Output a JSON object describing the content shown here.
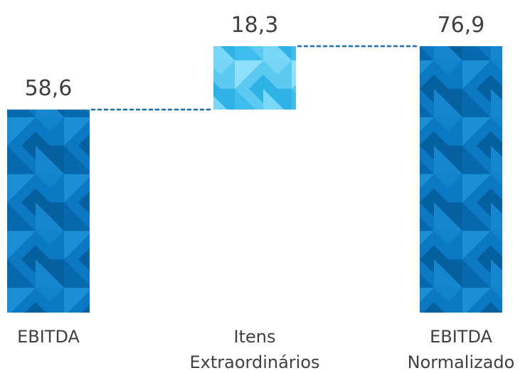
{
  "chart_data": {
    "type": "bar",
    "subtype": "waterfall",
    "categories": [
      [
        "EBITDA"
      ],
      [
        "Itens",
        "Extraordinários"
      ],
      [
        "EBITDA",
        "Normalizado"
      ]
    ],
    "values": [
      58.6,
      18.3,
      76.9
    ],
    "value_labels": [
      "58,6",
      "18,3",
      "76,9"
    ],
    "bar_roles": [
      "total",
      "increase",
      "total"
    ],
    "colors": {
      "total": "#0a78c2",
      "total_dark": "#05609f",
      "total_light": "#1b8fd6",
      "increase": "#5ccaf0",
      "increase_dark": "#2eb2e6",
      "increase_light": "#8ee0fb",
      "connector": "#1c6fb5",
      "value_text": "#3f3f3f",
      "category_text": "#404040"
    },
    "connectors": "dashed",
    "grid": false,
    "legend": "none"
  }
}
